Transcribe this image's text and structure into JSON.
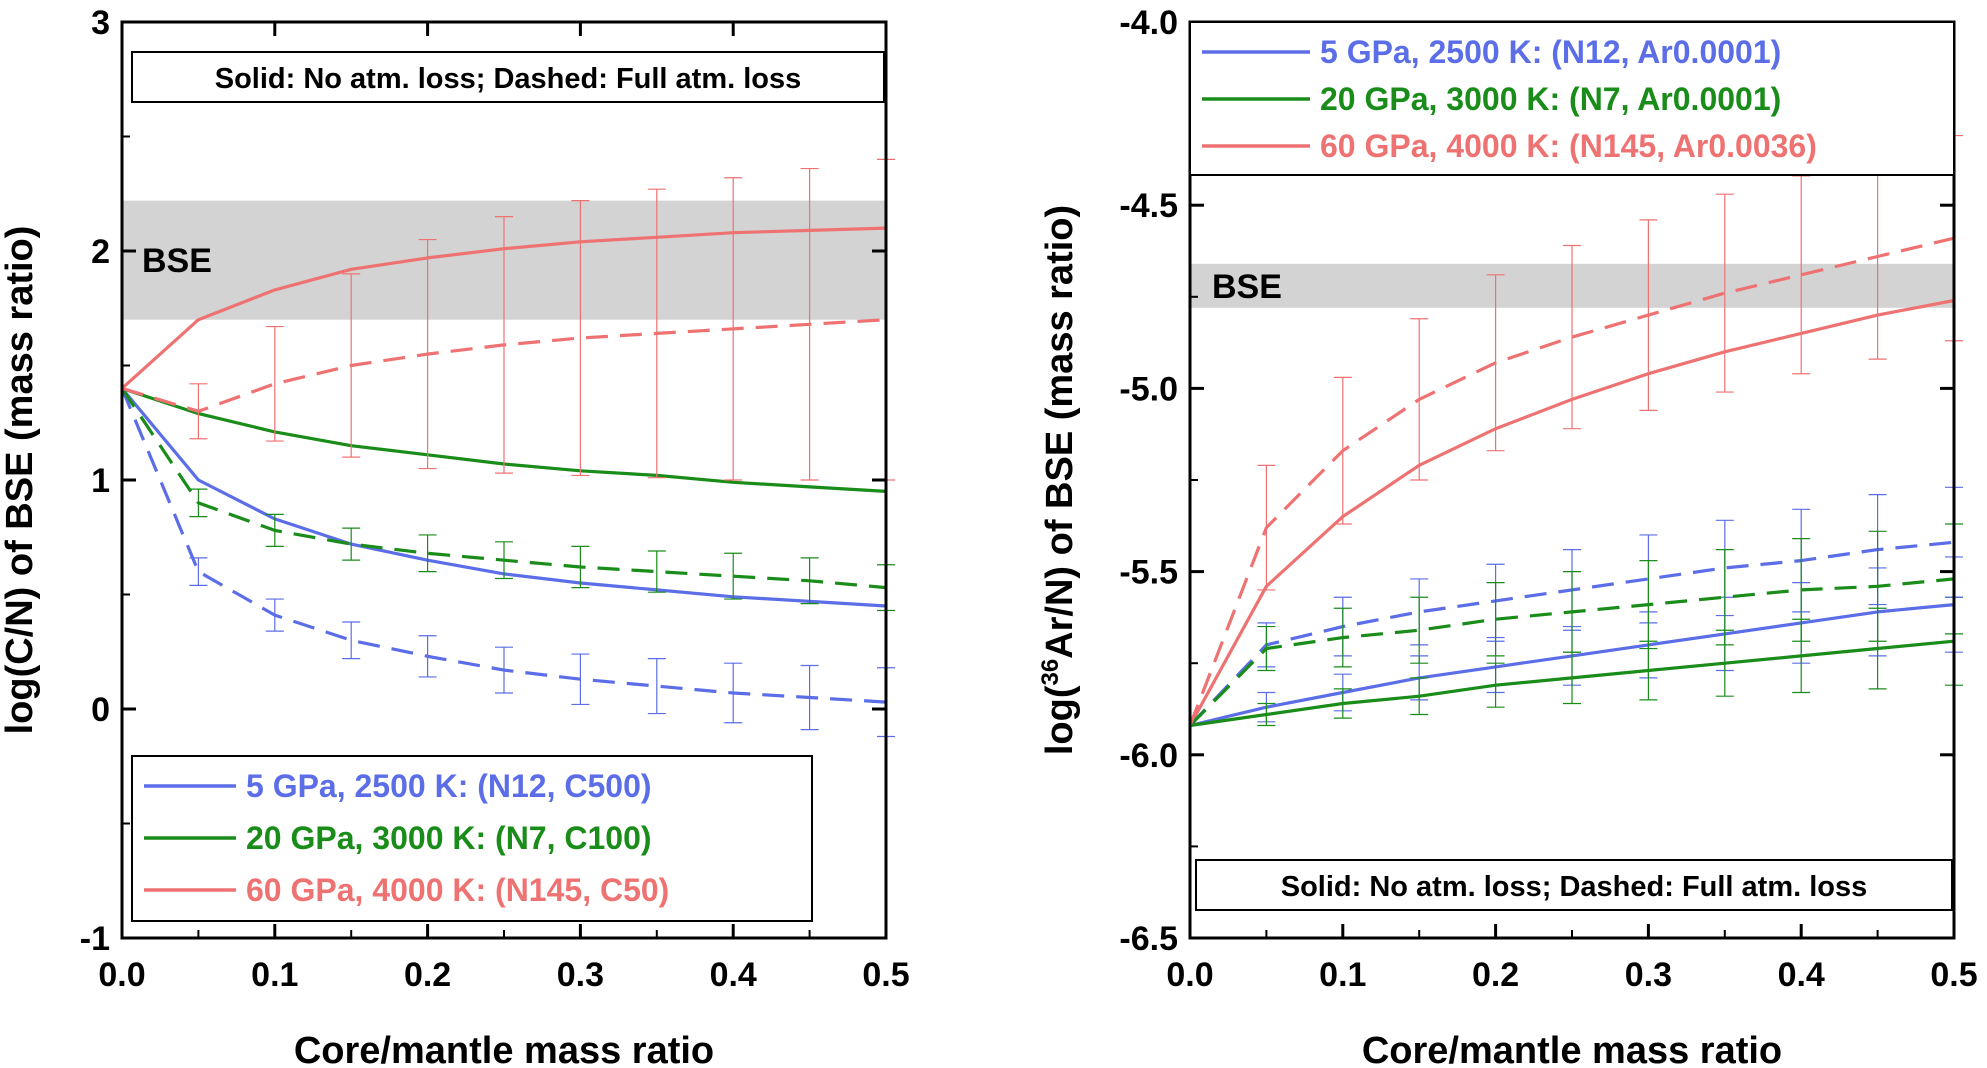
{
  "chart_data": [
    {
      "type": "line",
      "panel": "left",
      "xlabel": "Core/mantle mass ratio",
      "ylabel": "log(C/N) of BSE (mass ratio)",
      "xlim": [
        0,
        0.5
      ],
      "ylim": [
        -1,
        3
      ],
      "xticks": [
        0,
        0.1,
        0.2,
        0.3,
        0.4,
        0.5
      ],
      "xtick_labels": [
        "0.0",
        "0.1",
        "0.2",
        "0.3",
        "0.4",
        "0.5"
      ],
      "yticks": [
        -1,
        0,
        1,
        2,
        3
      ],
      "ytick_labels": [
        "-1",
        "0",
        "1",
        "2",
        "3"
      ],
      "note": "Solid: No atm. loss; Dashed: Full atm. loss",
      "band": {
        "label": "BSE",
        "y": [
          1.7,
          2.22
        ]
      },
      "series": [
        {
          "name": "5 GPa, 2500 K: (N12, C500)",
          "color": "#5b6ee8",
          "style": "solid",
          "x": [
            0,
            0.05,
            0.1,
            0.15,
            0.2,
            0.25,
            0.3,
            0.35,
            0.4,
            0.45,
            0.5
          ],
          "y": [
            1.4,
            1.0,
            0.83,
            0.72,
            0.65,
            0.59,
            0.55,
            0.52,
            0.49,
            0.47,
            0.45
          ]
        },
        {
          "name": "20 GPa, 3000 K: (N7, C100)",
          "color": "#1a8c1a",
          "style": "solid",
          "x": [
            0,
            0.05,
            0.1,
            0.15,
            0.2,
            0.25,
            0.3,
            0.35,
            0.4,
            0.45,
            0.5
          ],
          "y": [
            1.4,
            1.29,
            1.21,
            1.15,
            1.11,
            1.07,
            1.04,
            1.02,
            0.99,
            0.97,
            0.95
          ]
        },
        {
          "name": "60 GPa, 4000 K: (N145, C50)",
          "color": "#ef7272",
          "style": "solid",
          "x": [
            0,
            0.05,
            0.1,
            0.15,
            0.2,
            0.25,
            0.3,
            0.35,
            0.4,
            0.45,
            0.5
          ],
          "y": [
            1.4,
            1.7,
            1.83,
            1.92,
            1.97,
            2.01,
            2.04,
            2.06,
            2.08,
            2.09,
            2.1
          ]
        },
        {
          "name": "5 GPa, 2500 K (full atm. loss)",
          "color": "#5b6ee8",
          "style": "dashed",
          "x": [
            0,
            0.05,
            0.1,
            0.15,
            0.2,
            0.25,
            0.3,
            0.35,
            0.4,
            0.45,
            0.5
          ],
          "y": [
            1.4,
            0.6,
            0.41,
            0.3,
            0.23,
            0.17,
            0.13,
            0.1,
            0.07,
            0.05,
            0.03
          ],
          "err": [
            0,
            0.06,
            0.07,
            0.08,
            0.09,
            0.1,
            0.11,
            0.12,
            0.13,
            0.14,
            0.15
          ]
        },
        {
          "name": "20 GPa, 3000 K (full atm. loss)",
          "color": "#1a8c1a",
          "style": "dashed",
          "x": [
            0,
            0.05,
            0.1,
            0.15,
            0.2,
            0.25,
            0.3,
            0.35,
            0.4,
            0.45,
            0.5
          ],
          "y": [
            1.4,
            0.9,
            0.78,
            0.72,
            0.68,
            0.65,
            0.62,
            0.6,
            0.58,
            0.56,
            0.53
          ],
          "err": [
            0,
            0.06,
            0.07,
            0.07,
            0.08,
            0.08,
            0.09,
            0.09,
            0.1,
            0.1,
            0.1
          ]
        },
        {
          "name": "60 GPa, 4000 K (full atm. loss)",
          "color": "#ef7272",
          "style": "dashed",
          "x": [
            0,
            0.05,
            0.1,
            0.15,
            0.2,
            0.25,
            0.3,
            0.35,
            0.4,
            0.45,
            0.5
          ],
          "y": [
            1.4,
            1.3,
            1.42,
            1.5,
            1.55,
            1.59,
            1.62,
            1.64,
            1.66,
            1.68,
            1.7
          ],
          "err": [
            0,
            0.12,
            0.25,
            0.4,
            0.5,
            0.56,
            0.6,
            0.63,
            0.66,
            0.68,
            0.7
          ]
        }
      ],
      "legend": [
        {
          "label": "5 GPa, 2500 K: (N12, C500)",
          "color": "#5b6ee8"
        },
        {
          "label": "20 GPa, 3000 K: (N7, C100)",
          "color": "#1a8c1a"
        },
        {
          "label": "60 GPa, 4000 K: (N145, C50)",
          "color": "#ef7272"
        }
      ]
    },
    {
      "type": "line",
      "panel": "right",
      "xlabel": "Core/mantle mass ratio",
      "ylabel_prefix": "log(",
      "ylabel_sup": "36",
      "ylabel_suffix": "Ar/N) of BSE (mass ratio)",
      "xlim": [
        0,
        0.5
      ],
      "ylim": [
        -6.5,
        -4.0
      ],
      "xticks": [
        0,
        0.1,
        0.2,
        0.3,
        0.4,
        0.5
      ],
      "xtick_labels": [
        "0.0",
        "0.1",
        "0.2",
        "0.3",
        "0.4",
        "0.5"
      ],
      "yticks": [
        -6.5,
        -6.0,
        -5.5,
        -5.0,
        -4.5,
        -4.0
      ],
      "ytick_labels": [
        "-6.5",
        "-6.0",
        "-5.5",
        "-5.0",
        "-4.5",
        "-4.0"
      ],
      "note": "Solid: No atm. loss; Dashed: Full atm. loss",
      "band": {
        "label": "BSE",
        "y": [
          -4.78,
          -4.66
        ]
      },
      "series": [
        {
          "name": "5 GPa, 2500 K: (N12, Ar0.0001)",
          "color": "#5b6ee8",
          "style": "solid",
          "x": [
            0,
            0.05,
            0.1,
            0.15,
            0.2,
            0.25,
            0.3,
            0.35,
            0.4,
            0.45,
            0.5
          ],
          "y": [
            -5.92,
            -5.87,
            -5.83,
            -5.79,
            -5.76,
            -5.73,
            -5.7,
            -5.67,
            -5.64,
            -5.61,
            -5.59
          ],
          "err": [
            0,
            0.04,
            0.05,
            0.06,
            0.07,
            0.08,
            0.09,
            0.1,
            0.11,
            0.12,
            0.13
          ]
        },
        {
          "name": "20 GPa, 3000 K: (N7, Ar0.0001)",
          "color": "#1a8c1a",
          "style": "solid",
          "x": [
            0,
            0.05,
            0.1,
            0.15,
            0.2,
            0.25,
            0.3,
            0.35,
            0.4,
            0.45,
            0.5
          ],
          "y": [
            -5.92,
            -5.89,
            -5.86,
            -5.84,
            -5.81,
            -5.79,
            -5.77,
            -5.75,
            -5.73,
            -5.71,
            -5.69
          ],
          "err": [
            0,
            0.03,
            0.04,
            0.05,
            0.06,
            0.07,
            0.08,
            0.09,
            0.1,
            0.11,
            0.12
          ]
        },
        {
          "name": "60 GPa, 4000 K: (N145, Ar0.0036)",
          "color": "#ef7272",
          "style": "solid",
          "x": [
            0,
            0.05,
            0.1,
            0.15,
            0.2,
            0.25,
            0.3,
            0.35,
            0.4,
            0.45,
            0.5
          ],
          "y": [
            -5.92,
            -5.54,
            -5.35,
            -5.21,
            -5.11,
            -5.03,
            -4.96,
            -4.9,
            -4.85,
            -4.8,
            -4.76
          ]
        },
        {
          "name": "5 GPa, 2500 K (full atm. loss)",
          "color": "#5b6ee8",
          "style": "dashed",
          "x": [
            0,
            0.05,
            0.1,
            0.15,
            0.2,
            0.25,
            0.3,
            0.35,
            0.4,
            0.45,
            0.5
          ],
          "y": [
            -5.92,
            -5.7,
            -5.65,
            -5.61,
            -5.58,
            -5.55,
            -5.52,
            -5.49,
            -5.47,
            -5.44,
            -5.42
          ],
          "err": [
            0,
            0.06,
            0.08,
            0.09,
            0.1,
            0.11,
            0.12,
            0.13,
            0.14,
            0.15,
            0.15
          ]
        },
        {
          "name": "20 GPa, 3000 K (full atm. loss)",
          "color": "#1a8c1a",
          "style": "dashed",
          "x": [
            0,
            0.05,
            0.1,
            0.15,
            0.2,
            0.25,
            0.3,
            0.35,
            0.4,
            0.45,
            0.5
          ],
          "y": [
            -5.92,
            -5.71,
            -5.68,
            -5.66,
            -5.63,
            -5.61,
            -5.59,
            -5.57,
            -5.55,
            -5.54,
            -5.52
          ],
          "err": [
            0,
            0.06,
            0.08,
            0.09,
            0.1,
            0.11,
            0.12,
            0.13,
            0.14,
            0.15,
            0.15
          ]
        },
        {
          "name": "60 GPa, 4000 K (full atm. loss)",
          "color": "#ef7272",
          "style": "dashed",
          "x": [
            0,
            0.05,
            0.1,
            0.15,
            0.2,
            0.25,
            0.3,
            0.35,
            0.4,
            0.45,
            0.5
          ],
          "y": [
            -5.92,
            -5.38,
            -5.17,
            -5.03,
            -4.93,
            -4.86,
            -4.8,
            -4.74,
            -4.69,
            -4.64,
            -4.59
          ],
          "err": [
            0,
            0.17,
            0.2,
            0.22,
            0.24,
            0.25,
            0.26,
            0.27,
            0.27,
            0.28,
            0.28
          ]
        }
      ],
      "legend": [
        {
          "label": "5 GPa, 2500 K: (N12, Ar0.0001)",
          "color": "#5b6ee8"
        },
        {
          "label": "20 GPa, 3000 K: (N7, Ar0.0001)",
          "color": "#1a8c1a"
        },
        {
          "label": "60 GPa, 4000 K: (N145, Ar0.0036)",
          "color": "#ef7272"
        }
      ]
    }
  ]
}
